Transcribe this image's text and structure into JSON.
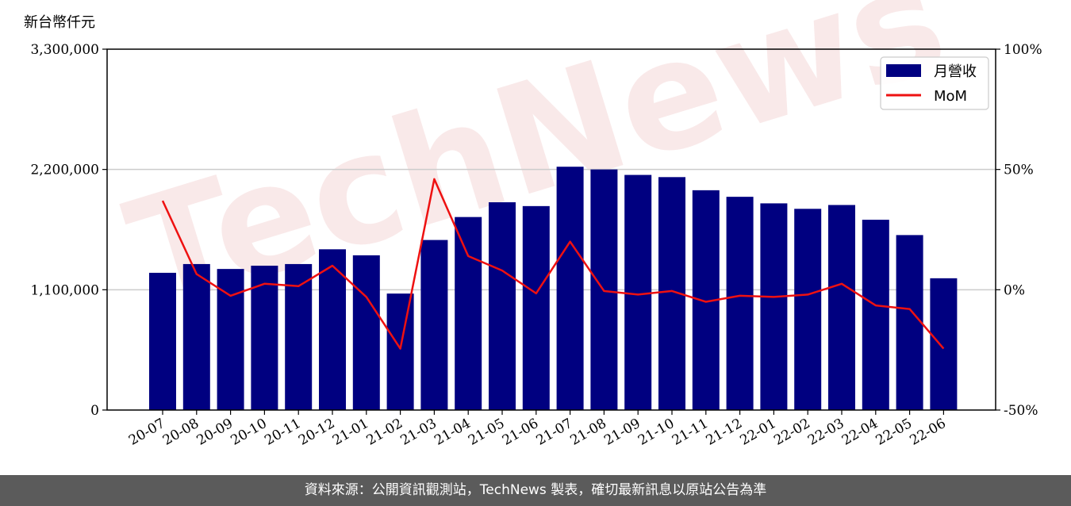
{
  "unit_label": "新台幣仟元",
  "footer": "資料來源：公開資訊觀測站，TechNews 製表，確切最新訊息以原站公告為準",
  "watermark": "TechNews",
  "colors": {
    "bar": "#000080",
    "line": "#ee1111",
    "grid": "#cccccc",
    "footer_bg": "#5b5b5b"
  },
  "chart_data": {
    "type": "bar",
    "categories": [
      "20-07",
      "20-08",
      "20-09",
      "20-10",
      "20-11",
      "20-12",
      "21-01",
      "21-02",
      "21-03",
      "21-04",
      "21-05",
      "21-06",
      "21-07",
      "21-08",
      "21-09",
      "21-10",
      "21-11",
      "21-12",
      "22-01",
      "22-02",
      "22-03",
      "22-04",
      "22-05",
      "22-06"
    ],
    "series": [
      {
        "name": "月營收",
        "type": "bar",
        "axis": "left",
        "values": [
          1255000,
          1335000,
          1290000,
          1320000,
          1335000,
          1470000,
          1415000,
          1065000,
          1555000,
          1765000,
          1900000,
          1865000,
          2225000,
          2200000,
          2150000,
          2130000,
          2010000,
          1950000,
          1890000,
          1840000,
          1875000,
          1740000,
          1600000,
          1205000
        ]
      },
      {
        "name": "MoM",
        "type": "line",
        "axis": "right",
        "values": [
          37,
          6.5,
          -2.5,
          2.5,
          1.5,
          10,
          -3,
          -24.5,
          46,
          14,
          8,
          -1.5,
          20,
          -0.5,
          -2,
          -0.5,
          -5,
          -2.5,
          -3,
          -2,
          2.5,
          -6.5,
          -8,
          -24.5
        ]
      }
    ],
    "y_left": {
      "range": [
        0,
        3300000
      ],
      "ticks": [
        0,
        1100000,
        2200000,
        3300000
      ],
      "tick_labels": [
        "0",
        "1,100,000",
        "2,200,000",
        "3,300,000"
      ]
    },
    "y_right": {
      "range": [
        -50,
        100
      ],
      "ticks": [
        -50,
        0,
        50,
        100
      ],
      "tick_labels": [
        "-50%",
        "0%",
        "50%",
        "100%"
      ]
    },
    "grid": "horizontal",
    "legend": "top-right"
  }
}
